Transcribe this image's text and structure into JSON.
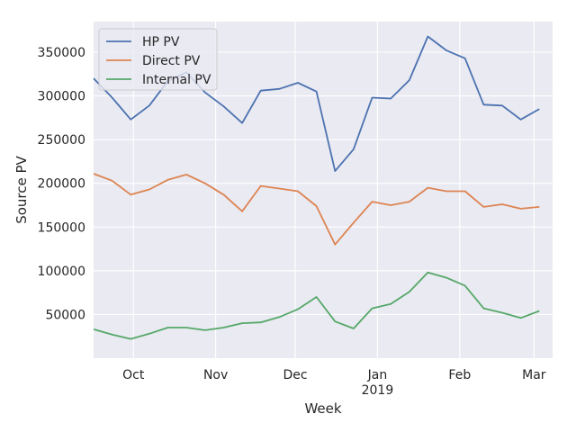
{
  "chart_data": {
    "type": "line",
    "title": "",
    "xlabel": "Week",
    "ylabel": "Source PV",
    "x": [
      "2018-09-16",
      "2018-09-23",
      "2018-09-30",
      "2018-10-07",
      "2018-10-14",
      "2018-10-21",
      "2018-10-28",
      "2018-11-04",
      "2018-11-11",
      "2018-11-18",
      "2018-11-25",
      "2018-12-02",
      "2018-12-09",
      "2018-12-16",
      "2018-12-23",
      "2018-12-30",
      "2019-01-06",
      "2019-01-13",
      "2019-01-20",
      "2019-01-27",
      "2019-02-03",
      "2019-02-10",
      "2019-02-17",
      "2019-02-24",
      "2019-03-03"
    ],
    "xlim": [
      "2018-09-16",
      "2019-03-08"
    ],
    "ylim": [
      0,
      385000
    ],
    "x_ticks": [
      {
        "date": "2018-10-01",
        "label": "Oct",
        "sublabel": ""
      },
      {
        "date": "2018-11-01",
        "label": "Nov",
        "sublabel": ""
      },
      {
        "date": "2018-12-01",
        "label": "Dec",
        "sublabel": ""
      },
      {
        "date": "2019-01-01",
        "label": "Jan",
        "sublabel": "2019"
      },
      {
        "date": "2019-02-01",
        "label": "Feb",
        "sublabel": ""
      },
      {
        "date": "2019-03-01",
        "label": "Mar",
        "sublabel": ""
      }
    ],
    "y_ticks": [
      {
        "value": 50000,
        "label": "50000"
      },
      {
        "value": 100000,
        "label": "100000"
      },
      {
        "value": 150000,
        "label": "150000"
      },
      {
        "value": 200000,
        "label": "200000"
      },
      {
        "value": 250000,
        "label": "250000"
      },
      {
        "value": 300000,
        "label": "300000"
      },
      {
        "value": 350000,
        "label": "350000"
      }
    ],
    "grid": true,
    "legend_position": "top-left",
    "background": "#eaeaf2",
    "grid_color": "#ffffff",
    "series": [
      {
        "name": "HP PV",
        "color": "#4c72b0",
        "values": [
          320000,
          298000,
          273000,
          289000,
          317000,
          327000,
          304000,
          288000,
          269000,
          306000,
          308000,
          315000,
          305000,
          214000,
          239000,
          298000,
          297000,
          318000,
          368000,
          352000,
          343000,
          290000,
          289000,
          273000,
          285000
        ]
      },
      {
        "name": "Direct PV",
        "color": "#dd8452",
        "values": [
          211000,
          203000,
          187000,
          193000,
          204000,
          210000,
          200000,
          187000,
          168000,
          197000,
          194000,
          191000,
          174000,
          130000,
          155000,
          179000,
          175000,
          179000,
          195000,
          191000,
          191000,
          173000,
          176000,
          171000,
          173000
        ]
      },
      {
        "name": "Internal PV",
        "color": "#55a868",
        "values": [
          33000,
          27000,
          22000,
          28000,
          35000,
          35000,
          32000,
          35000,
          40000,
          41000,
          47000,
          56000,
          70000,
          42000,
          34000,
          57000,
          62000,
          76000,
          98000,
          92000,
          83000,
          57000,
          52000,
          46000,
          54000
        ]
      }
    ]
  }
}
